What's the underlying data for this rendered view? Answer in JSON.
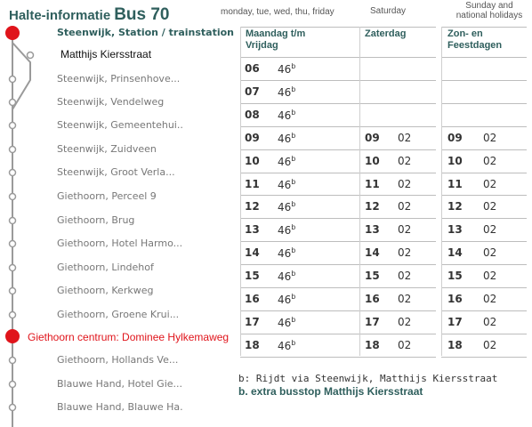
{
  "header": {
    "title_prefix": "Halte-informatie",
    "title_bus": "Bus 70"
  },
  "day_headers": {
    "weekdays": "monday, tue, wed, thu, friday",
    "saturday": "Saturday",
    "sunday_line1": "Sunday and",
    "sunday_line2": "national holidays"
  },
  "columns": {
    "weekday_line1": "Maandag t/m",
    "weekday_line2": "Vrijdag",
    "saturday": "Zaterdag",
    "sunday_line1": "Zon- en",
    "sunday_line2": "Feestdagen"
  },
  "stops": [
    {
      "name": "Steenwijk, Station / trainstation",
      "type": "first"
    },
    {
      "name": "Matthijs Kiersstraat",
      "type": "via"
    },
    {
      "name": "Steenwijk, Prinsenhove...",
      "type": "normal"
    },
    {
      "name": "Steenwijk, Vendelweg",
      "type": "normal"
    },
    {
      "name": "Steenwijk, Gemeentehui..",
      "type": "normal"
    },
    {
      "name": "Steenwijk, Zuidveen",
      "type": "normal"
    },
    {
      "name": "Steenwijk, Groot Verla...",
      "type": "normal"
    },
    {
      "name": "Giethoorn, Perceel 9",
      "type": "normal"
    },
    {
      "name": "Giethoorn, Brug",
      "type": "normal"
    },
    {
      "name": "Giethoorn, Hotel Harmo...",
      "type": "normal"
    },
    {
      "name": "Giethoorn, Lindehof",
      "type": "normal"
    },
    {
      "name": "Giethoorn, Kerkweg",
      "type": "normal"
    },
    {
      "name": "Giethoorn, Groene Krui...",
      "type": "normal"
    },
    {
      "name": "Giethoorn centrum: Dominee Hylkemaweg",
      "type": "highlight"
    },
    {
      "name": "Giethoorn, Hollands Ve...",
      "type": "normal"
    },
    {
      "name": "Blauwe Hand, Hotel Gie...",
      "type": "normal"
    },
    {
      "name": "Blauwe Hand, Blauwe Ha.",
      "type": "normal"
    }
  ],
  "timetable": {
    "weekday": [
      {
        "hour": "06",
        "min": "46",
        "note": "b"
      },
      {
        "hour": "07",
        "min": "46",
        "note": "b"
      },
      {
        "hour": "08",
        "min": "46",
        "note": "b"
      },
      {
        "hour": "09",
        "min": "46",
        "note": "b"
      },
      {
        "hour": "10",
        "min": "46",
        "note": "b"
      },
      {
        "hour": "11",
        "min": "46",
        "note": "b"
      },
      {
        "hour": "12",
        "min": "46",
        "note": "b"
      },
      {
        "hour": "13",
        "min": "46",
        "note": "b"
      },
      {
        "hour": "14",
        "min": "46",
        "note": "b"
      },
      {
        "hour": "15",
        "min": "46",
        "note": "b"
      },
      {
        "hour": "16",
        "min": "46",
        "note": "b"
      },
      {
        "hour": "17",
        "min": "46",
        "note": "b"
      },
      {
        "hour": "18",
        "min": "46",
        "note": "b"
      }
    ],
    "saturday": [
      {
        "hour": "09",
        "min": "02"
      },
      {
        "hour": "10",
        "min": "02"
      },
      {
        "hour": "11",
        "min": "02"
      },
      {
        "hour": "12",
        "min": "02"
      },
      {
        "hour": "13",
        "min": "02"
      },
      {
        "hour": "14",
        "min": "02"
      },
      {
        "hour": "15",
        "min": "02"
      },
      {
        "hour": "16",
        "min": "02"
      },
      {
        "hour": "17",
        "min": "02"
      },
      {
        "hour": "18",
        "min": "02"
      }
    ],
    "sunday": [
      {
        "hour": "09",
        "min": "02"
      },
      {
        "hour": "10",
        "min": "02"
      },
      {
        "hour": "11",
        "min": "02"
      },
      {
        "hour": "12",
        "min": "02"
      },
      {
        "hour": "13",
        "min": "02"
      },
      {
        "hour": "14",
        "min": "02"
      },
      {
        "hour": "15",
        "min": "02"
      },
      {
        "hour": "16",
        "min": "02"
      },
      {
        "hour": "17",
        "min": "02"
      },
      {
        "hour": "18",
        "min": "02"
      }
    ]
  },
  "footnotes": {
    "b_note": "b: Rijdt via Steenwijk, Matthijs Kiersstraat",
    "b_extra": "b. extra busstop Matthijs Kiersstraat"
  },
  "colors": {
    "accent": "#2f5f5d",
    "highlight": "#e0141b",
    "line": "#9a9a9a"
  }
}
